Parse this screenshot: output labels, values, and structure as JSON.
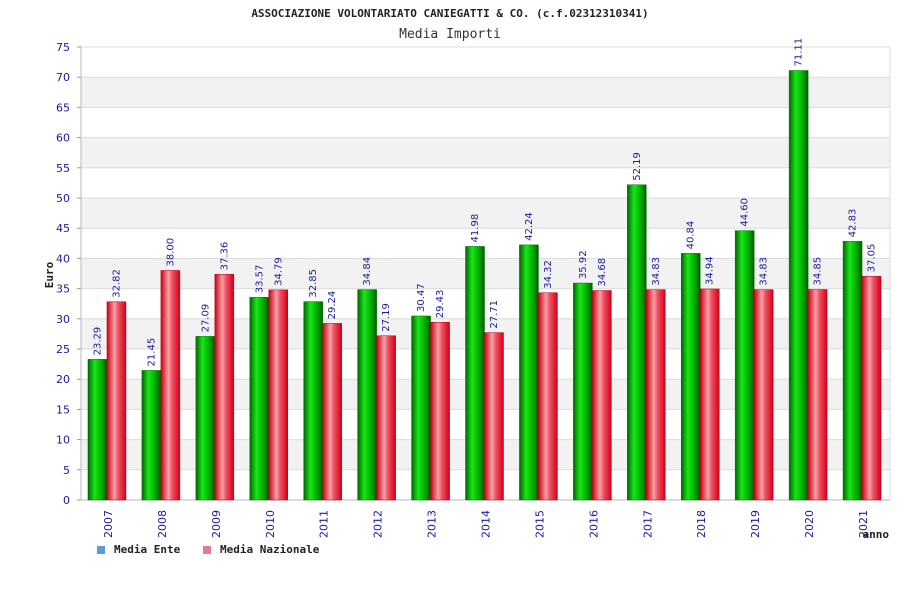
{
  "chart_data": {
    "type": "bar",
    "title": "ASSOCIAZIONE VOLONTARIATO CANIEGATTI & CO. (c.f.02312310341)",
    "subtitle": "Media Importi",
    "xlabel": "anno",
    "ylabel": "Euro",
    "ylim": [
      0,
      75
    ],
    "yticks": [
      "0",
      "5",
      "10",
      "15",
      "20",
      "25",
      "30",
      "35",
      "40",
      "45",
      "50",
      "55",
      "60",
      "65",
      "70",
      "75"
    ],
    "grid": true,
    "legend_position": "bottom-left",
    "categories": [
      "2007",
      "2008",
      "2009",
      "2010",
      "2011",
      "2012",
      "2013",
      "2014",
      "2015",
      "2016",
      "2017",
      "2018",
      "2019",
      "2020",
      "2021"
    ],
    "series": [
      {
        "name": "Media Ente",
        "color": "#00b000",
        "legend_color": "#5b9bd5",
        "values": [
          23.29,
          21.45,
          27.09,
          33.57,
          32.85,
          34.84,
          30.47,
          41.98,
          42.24,
          35.92,
          52.19,
          40.84,
          44.6,
          71.11,
          42.83
        ],
        "labels": [
          "23.29",
          "21.45",
          "27.09",
          "33.57",
          "32.85",
          "34.84",
          "30.47",
          "41.98",
          "42.24",
          "35.92",
          "52.19",
          "40.84",
          "44.60",
          "71.11",
          "42.83"
        ]
      },
      {
        "name": "Media Nazionale",
        "color": "#e8101c",
        "legend_color": "#e07aa0",
        "values": [
          32.82,
          38.0,
          37.36,
          34.79,
          29.24,
          27.19,
          29.43,
          27.71,
          34.32,
          34.68,
          34.83,
          34.94,
          34.83,
          34.85,
          37.05
        ],
        "labels": [
          "32.82",
          "38.00",
          "37.36",
          "34.79",
          "29.24",
          "27.19",
          "29.43",
          "27.71",
          "34.32",
          "34.68",
          "34.83",
          "34.94",
          "34.83",
          "34.85",
          "37.05"
        ]
      }
    ]
  }
}
